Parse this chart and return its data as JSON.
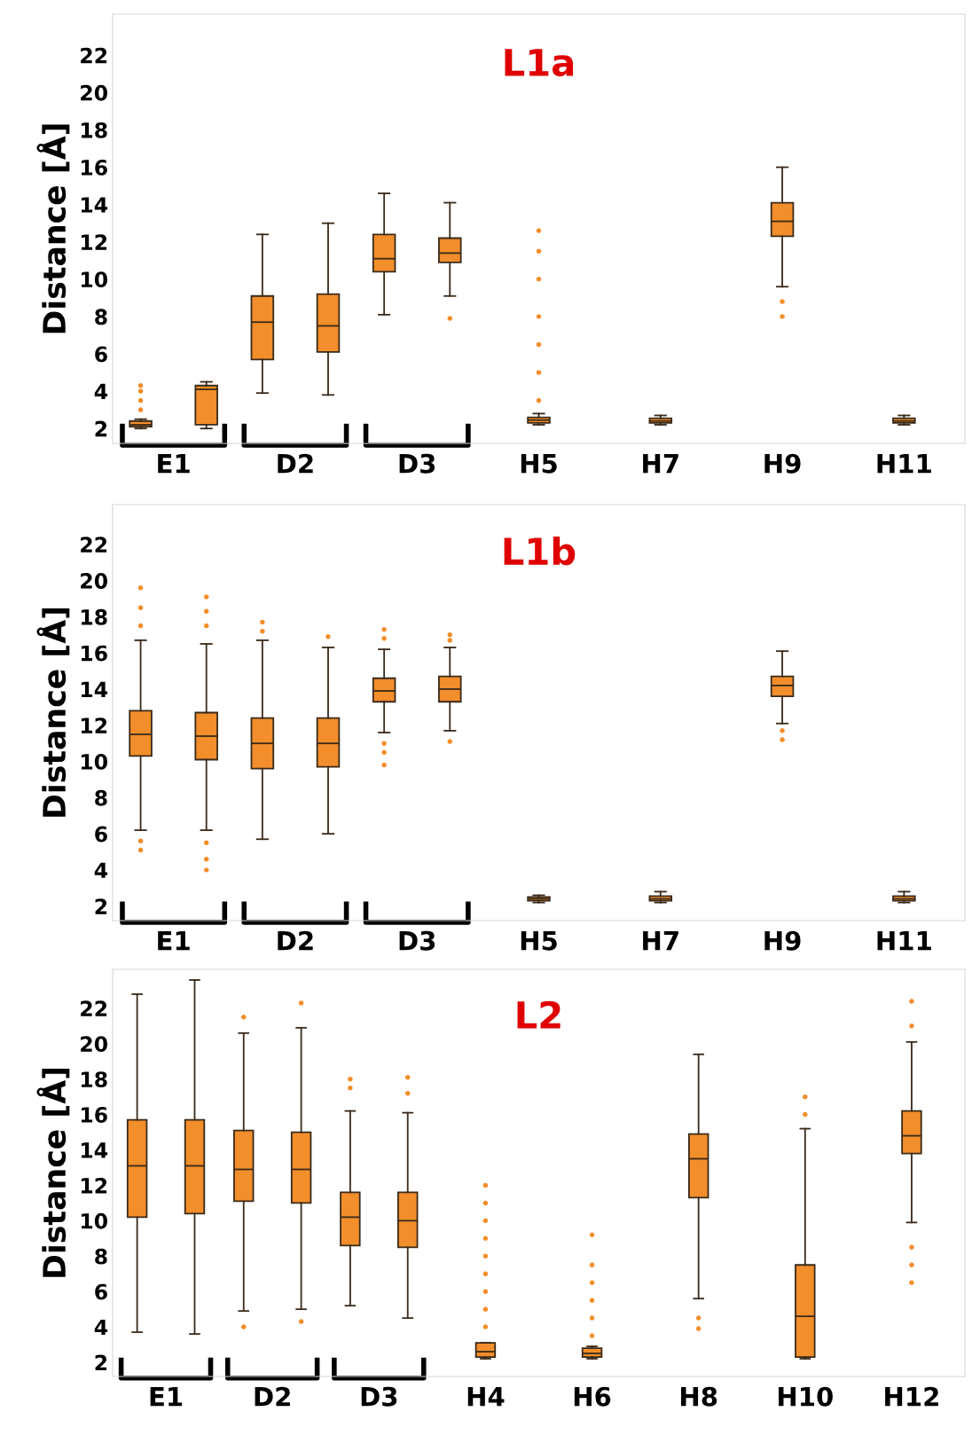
{
  "chart_data": [
    {
      "type": "box",
      "title": "L1a",
      "ylabel": "Distance [Å]",
      "categories": [
        "E1",
        "D2",
        "D3",
        "H5",
        "H7",
        "H9",
        "H11"
      ],
      "ylim": [
        1.2,
        24.2
      ],
      "yticks": [
        2,
        4,
        6,
        8,
        10,
        12,
        14,
        16,
        18,
        20,
        22
      ],
      "grid": false,
      "series": [
        {
          "color": "#f28e2b",
          "boxes": [
            {
              "low": 2.0,
              "q1": 2.1,
              "median": 2.2,
              "q3": 2.4,
              "high": 2.5,
              "outliers": [
                3.0,
                3.5,
                4.0,
                4.3
              ]
            },
            {
              "low": 3.9,
              "q1": 5.7,
              "median": 7.7,
              "q3": 9.1,
              "high": 12.4
            },
            {
              "low": 8.1,
              "q1": 10.4,
              "median": 11.1,
              "q3": 12.4,
              "high": 14.6
            },
            {
              "low": 2.2,
              "q1": 2.3,
              "median": 2.45,
              "q3": 2.6,
              "high": 2.8,
              "outliers": [
                3.5,
                5,
                6.5,
                8,
                10,
                11.5,
                12.6
              ]
            },
            {
              "low": 2.2,
              "q1": 2.3,
              "median": 2.4,
              "q3": 2.55,
              "high": 2.7
            },
            {
              "low": 9.6,
              "q1": 12.3,
              "median": 13.1,
              "q3": 14.1,
              "high": 16.0,
              "outliers": [
                8.0,
                8.8
              ]
            },
            {
              "low": 2.2,
              "q1": 2.3,
              "median": 2.4,
              "q3": 2.55,
              "high": 2.7
            }
          ]
        },
        {
          "color": "#f28e2b",
          "boxes": [
            {
              "low": 2.0,
              "q1": 2.2,
              "median": 4.1,
              "q3": 4.3,
              "high": 4.5
            },
            {
              "low": 3.8,
              "q1": 6.1,
              "median": 7.5,
              "q3": 9.2,
              "high": 13.0
            },
            {
              "low": 9.1,
              "q1": 10.9,
              "median": 11.4,
              "q3": 12.2,
              "high": 14.1,
              "outliers": [
                7.9
              ]
            },
            null,
            null,
            null,
            null
          ]
        }
      ]
    },
    {
      "type": "box",
      "title": "L1b",
      "ylabel": "Distance [Å]",
      "categories": [
        "E1",
        "D2",
        "D3",
        "H5",
        "H7",
        "H9",
        "H11"
      ],
      "ylim": [
        1.2,
        24.2
      ],
      "yticks": [
        2,
        4,
        6,
        8,
        10,
        12,
        14,
        16,
        18,
        20,
        22
      ],
      "grid": false,
      "series": [
        {
          "color": "#f28e2b",
          "boxes": [
            {
              "low": 6.2,
              "q1": 10.3,
              "median": 11.5,
              "q3": 12.8,
              "high": 16.7,
              "outliers": [
                5.1,
                5.6,
                17.5,
                18.5,
                19.6
              ]
            },
            {
              "low": 5.7,
              "q1": 9.6,
              "median": 11.0,
              "q3": 12.4,
              "high": 16.7,
              "outliers": [
                17.2,
                17.7
              ]
            },
            {
              "low": 11.6,
              "q1": 13.3,
              "median": 13.9,
              "q3": 14.6,
              "high": 16.2,
              "outliers": [
                9.8,
                10.5,
                11.0,
                16.8,
                17.3
              ]
            },
            {
              "low": 2.2,
              "q1": 2.3,
              "median": 2.4,
              "q3": 2.5,
              "high": 2.6
            },
            {
              "low": 2.2,
              "q1": 2.3,
              "median": 2.4,
              "q3": 2.55,
              "high": 2.8
            },
            {
              "low": 12.1,
              "q1": 13.6,
              "median": 14.2,
              "q3": 14.7,
              "high": 16.1,
              "outliers": [
                11.2,
                11.7
              ]
            },
            {
              "low": 2.2,
              "q1": 2.3,
              "median": 2.4,
              "q3": 2.55,
              "high": 2.8
            }
          ]
        },
        {
          "color": "#f28e2b",
          "boxes": [
            {
              "low": 6.2,
              "q1": 10.1,
              "median": 11.4,
              "q3": 12.7,
              "high": 16.5,
              "outliers": [
                4.0,
                4.6,
                5.5,
                17.5,
                18.3,
                19.1
              ]
            },
            {
              "low": 6.0,
              "q1": 9.7,
              "median": 11.0,
              "q3": 12.4,
              "high": 16.3,
              "outliers": [
                16.9
              ]
            },
            {
              "low": 11.7,
              "q1": 13.3,
              "median": 14.0,
              "q3": 14.7,
              "high": 16.3,
              "outliers": [
                11.1,
                16.7,
                17.0
              ]
            },
            null,
            null,
            null,
            null
          ]
        }
      ]
    },
    {
      "type": "box",
      "title": "L2",
      "ylabel": "Distance [Å]",
      "categories": [
        "E1",
        "D2",
        "D3",
        "H4",
        "H6",
        "H8",
        "H10",
        "H12"
      ],
      "ylim": [
        1.2,
        24.2
      ],
      "yticks": [
        2,
        4,
        6,
        8,
        10,
        12,
        14,
        16,
        18,
        20,
        22
      ],
      "grid": false,
      "series": [
        {
          "color": "#f28e2b",
          "boxes": [
            {
              "low": 3.7,
              "q1": 10.2,
              "median": 13.1,
              "q3": 15.7,
              "high": 22.8
            },
            {
              "low": 4.9,
              "q1": 11.1,
              "median": 12.9,
              "q3": 15.1,
              "high": 20.6,
              "outliers": [
                4.0,
                21.5
              ]
            },
            {
              "low": 5.2,
              "q1": 8.6,
              "median": 10.2,
              "q3": 11.6,
              "high": 16.2,
              "outliers": [
                17.5,
                18.0
              ]
            },
            {
              "low": 2.2,
              "q1": 2.3,
              "median": 2.6,
              "q3": 3.1,
              "high": 3.1,
              "outliers": [
                4,
                5,
                6,
                7,
                8,
                9,
                10,
                11,
                12
              ]
            },
            {
              "low": 2.2,
              "q1": 2.3,
              "median": 2.5,
              "q3": 2.8,
              "high": 2.9,
              "outliers": [
                3.5,
                4.5,
                5.5,
                6.5,
                7.5,
                9.2
              ]
            },
            {
              "low": 5.6,
              "q1": 11.3,
              "median": 13.5,
              "q3": 14.9,
              "high": 19.4,
              "outliers": [
                3.9,
                4.5
              ]
            },
            {
              "low": 2.2,
              "q1": 2.3,
              "median": 4.6,
              "q3": 7.5,
              "high": 15.2,
              "outliers": [
                16,
                17
              ]
            },
            {
              "low": 9.9,
              "q1": 13.8,
              "median": 14.8,
              "q3": 16.2,
              "high": 20.1,
              "outliers": [
                6.5,
                7.5,
                8.5,
                21,
                22.4
              ]
            }
          ]
        },
        {
          "color": "#f28e2b",
          "boxes": [
            {
              "low": 3.6,
              "q1": 10.4,
              "median": 13.1,
              "q3": 15.7,
              "high": 23.6
            },
            {
              "low": 5.0,
              "q1": 11.0,
              "median": 12.9,
              "q3": 15.0,
              "high": 20.9,
              "outliers": [
                4.3,
                22.3
              ]
            },
            {
              "low": 4.5,
              "q1": 8.5,
              "median": 10.0,
              "q3": 11.6,
              "high": 16.1,
              "outliers": [
                17.2,
                18.1
              ]
            },
            null,
            null,
            null,
            null,
            null
          ]
        }
      ]
    }
  ]
}
